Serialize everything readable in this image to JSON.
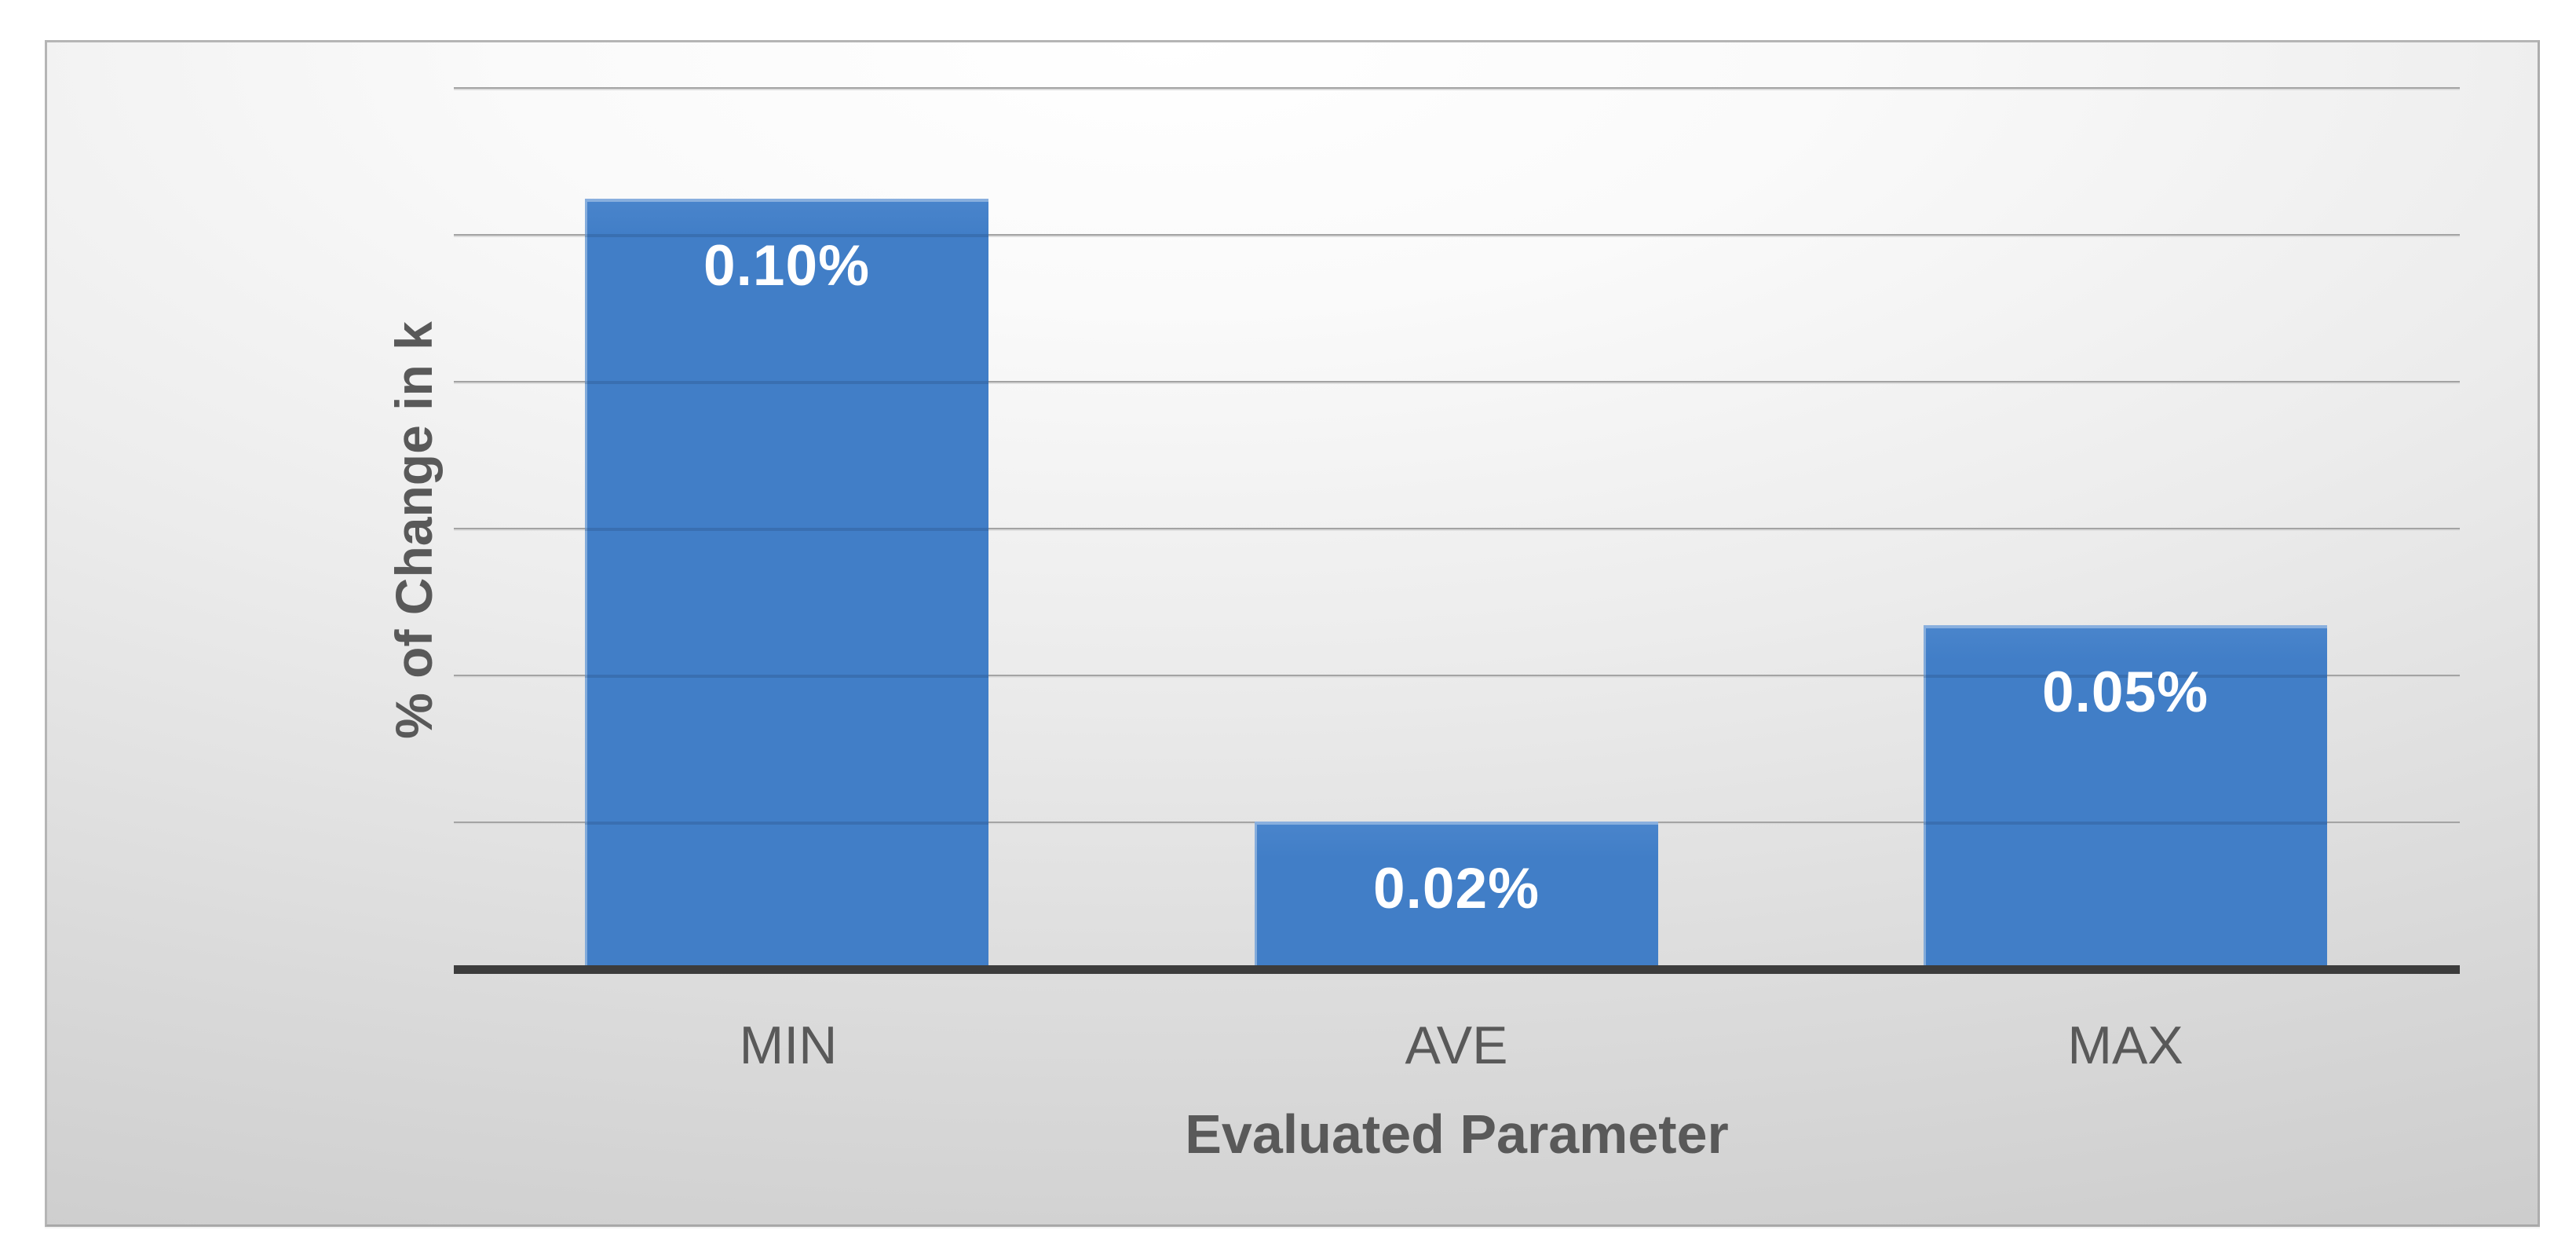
{
  "chart_data": {
    "type": "bar",
    "title": "",
    "categories": [
      "MIN",
      "AVE",
      "MAX"
    ],
    "values": [
      0.1,
      0.02,
      0.05
    ],
    "data_labels": [
      "0.10%",
      "0.02%",
      "0.05%"
    ],
    "values_plotted_estimate": [
      0.105,
      0.0202,
      0.047
    ],
    "series_count": 1,
    "xlabel": "Evaluated Parameter",
    "ylabel": "% of Change in k",
    "ylim": [
      0,
      0.12
    ],
    "gridline_step": 0.02,
    "gridlines_visible": true,
    "y_tick_labels_visible": false,
    "x_tick_labels_visible": true,
    "legend_position": "none",
    "colors": {
      "bar_fill": "#417EC7",
      "bar_top_highlight": "#4A85CC",
      "data_label_text": "#FFFFFF",
      "axis_text": "#595959",
      "axis_line": "#3C3C3C",
      "gridline": "#A3A3A3",
      "panel_edge_light": "#FFFFFF",
      "panel_edge_dark": "#C6C6C6",
      "panel_border": "#B5B5B5",
      "page_background": "#FFFFFF"
    }
  }
}
